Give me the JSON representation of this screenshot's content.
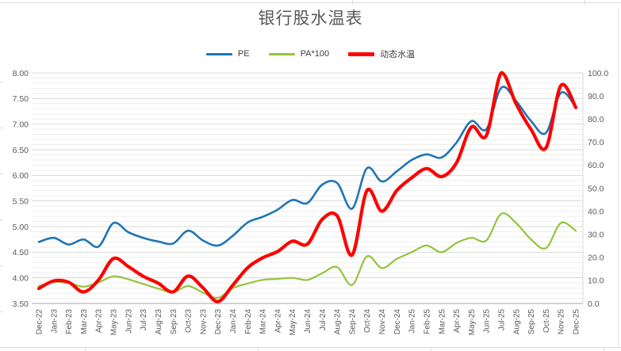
{
  "chart_data": {
    "type": "line",
    "title": "银行股水温表",
    "legend_position": "top",
    "grid": "major+minor horizontal gridlines, no vertical gridlines",
    "x": [
      "Dec-22",
      "Jan-23",
      "Feb-23",
      "Mar-23",
      "Apr-23",
      "May-23",
      "Jun-23",
      "Jul-23",
      "Aug-23",
      "Sep-23",
      "Oct-23",
      "Nov-23",
      "Dec-23",
      "Jan-24",
      "Feb-24",
      "Mar-24",
      "Apr-24",
      "May-24",
      "Jun-24",
      "Jul-24",
      "Aug-24",
      "Sep-24",
      "Oct-24",
      "Nov-24",
      "Dec-24",
      "Jan-25",
      "Feb-25",
      "Mar-25",
      "Apr-25",
      "May-25",
      "Jun-25",
      "Jul-25",
      "Aug-25",
      "Sep-25",
      "Oct-25",
      "Nov-25",
      "Dec-25"
    ],
    "left_axis": {
      "min": 3.5,
      "max": 8.0,
      "step": 0.5,
      "minor_step": 0.1,
      "labels": [
        "8.00",
        "7.50",
        "7.00",
        "6.50",
        "6.00",
        "5.50",
        "5.00",
        "4.50",
        "4.00",
        "3.50"
      ]
    },
    "right_axis": {
      "min": 0,
      "max": 100,
      "step": 10,
      "labels": [
        "100.0",
        "90.0",
        "80.0",
        "70.0",
        "60.0",
        "50.0",
        "40.0",
        "30.0",
        "20.0",
        "10.0",
        "0.0"
      ]
    },
    "series": [
      {
        "name": "PE",
        "axis": "left",
        "color": "#1f76b5",
        "width": 2.6,
        "legend_weight": 3,
        "values": [
          4.7,
          4.78,
          4.65,
          4.75,
          4.61,
          5.07,
          4.89,
          4.78,
          4.71,
          4.67,
          4.92,
          4.73,
          4.63,
          4.82,
          5.08,
          5.19,
          5.33,
          5.52,
          5.46,
          5.82,
          5.85,
          5.35,
          6.14,
          5.88,
          6.08,
          6.3,
          6.41,
          6.35,
          6.64,
          7.06,
          6.9,
          7.71,
          7.45,
          7.06,
          6.83,
          7.61,
          7.33
        ]
      },
      {
        "name": "PA*100",
        "axis": "left",
        "color": "#94c43d",
        "width": 2.2,
        "legend_weight": 3,
        "values": [
          3.84,
          3.92,
          3.9,
          3.83,
          3.91,
          4.03,
          3.97,
          3.88,
          3.79,
          3.72,
          3.84,
          3.71,
          3.61,
          3.8,
          3.89,
          3.96,
          3.98,
          4.0,
          3.96,
          4.09,
          4.21,
          3.86,
          4.42,
          4.19,
          4.37,
          4.5,
          4.63,
          4.5,
          4.68,
          4.78,
          4.73,
          5.25,
          5.07,
          4.75,
          4.58,
          5.07,
          4.92
        ]
      },
      {
        "name": "动态水温",
        "axis": "right",
        "color": "#fe0000",
        "width": 4.2,
        "legend_weight": 5,
        "values": [
          6.5,
          9.8,
          9.2,
          5.0,
          10.2,
          19.5,
          16.0,
          11.8,
          8.8,
          5.0,
          11.9,
          6.8,
          0.8,
          7.9,
          15.5,
          19.8,
          22.5,
          27.0,
          25.7,
          36.5,
          38.0,
          21.0,
          49.0,
          40.0,
          49.0,
          54.5,
          58.5,
          55.0,
          61.0,
          76.5,
          72.8,
          100.0,
          86.5,
          75.5,
          67.5,
          94.5,
          85.0
        ]
      }
    ],
    "colors": {
      "grid_major": "#d9d9d9",
      "grid_minor": "#ededed",
      "axis_line": "#a6a6a6",
      "tick_text": "#595959",
      "title_text": "#595959"
    }
  }
}
